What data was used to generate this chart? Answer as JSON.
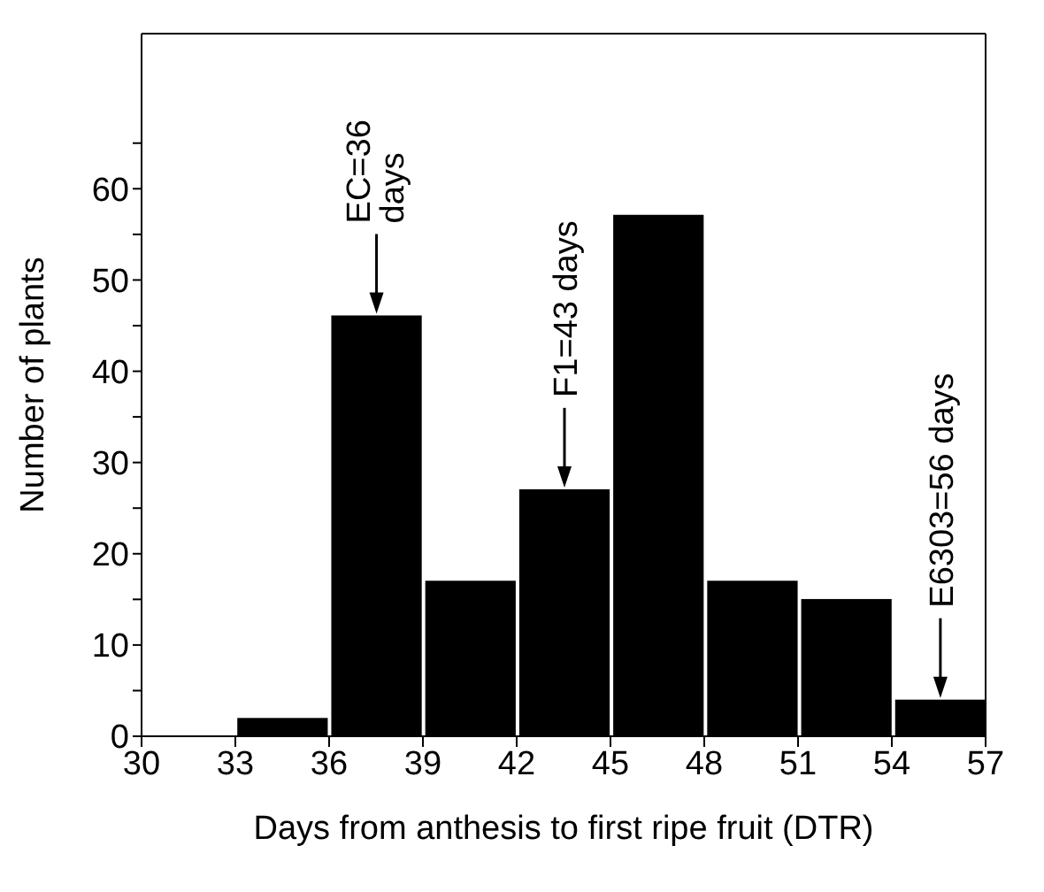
{
  "chart_data": {
    "type": "histogram",
    "xlabel": "Days from anthesis to first ripe fruit (DTR)",
    "ylabel": "Number of plants",
    "bins": [
      30,
      33,
      36,
      39,
      42,
      45,
      48,
      51,
      54,
      57
    ],
    "values": [
      0,
      2,
      46,
      17,
      27,
      57,
      17,
      15,
      4
    ],
    "color": "#000000",
    "xlim": [
      30,
      57
    ],
    "xticks": [
      30,
      33,
      36,
      39,
      42,
      45,
      48,
      51,
      54,
      57
    ],
    "ylim": [
      0,
      77
    ],
    "yticks": [
      0,
      {
        "value": 5,
        "label": null
      },
      10,
      {
        "value": 15,
        "label": null
      },
      20,
      {
        "value": 25,
        "label": null
      },
      30,
      {
        "value": 35,
        "label": null
      },
      40,
      {
        "value": 45,
        "label": null
      },
      50,
      {
        "value": 55,
        "label": null
      },
      60,
      {
        "value": 65,
        "label": null
      }
    ],
    "grid": false,
    "annotations": [
      {
        "text": "EC=36\ndays",
        "x": 37.5,
        "y": 46
      },
      {
        "text": "F1=43 days",
        "x": 43.5,
        "y": 27
      },
      {
        "text": "E6303=56 days",
        "x": 55.5,
        "y": 4
      }
    ]
  }
}
